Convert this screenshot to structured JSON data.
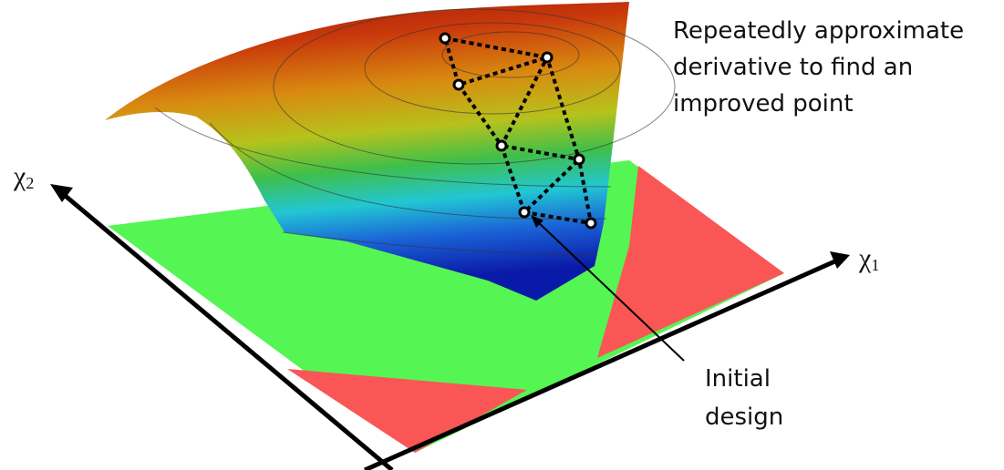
{
  "annotation": {
    "lines": [
      "Repeatedly approximate",
      "derivative to find an",
      "improved point"
    ]
  },
  "callout": {
    "lines": [
      "Initial",
      "design"
    ]
  },
  "axes": {
    "x1": {
      "base": "χ",
      "sub": "1"
    },
    "x2": {
      "base": "χ",
      "sub": "2"
    }
  }
}
